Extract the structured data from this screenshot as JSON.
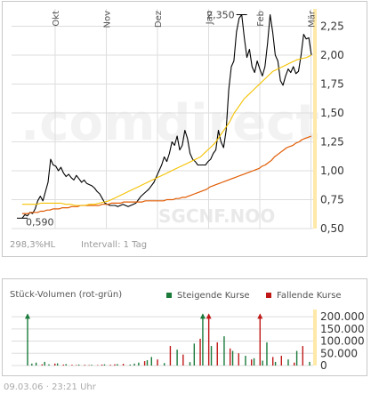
{
  "colors": {
    "price": "#000000",
    "ma_short": "#f5c200",
    "ma_long": "#e05a00",
    "grid": "#dddddd",
    "axis_band": "#ffe9a8",
    "rising": "#1a7a3a",
    "falling": "#c01818",
    "watermark": "#f0f0f0"
  },
  "watermark": {
    "brand": ".comdirect",
    "symbol": "SGCNF.NOO"
  },
  "info": {
    "change": "298,3%HL",
    "interval": "Intervall: 1 Tag"
  },
  "footer": {
    "timestamp": "09.03.06 · 23:21 Uhr"
  },
  "price_chart_data": {
    "type": "line",
    "x_labels": [
      "Okt",
      "Nov",
      "Dez",
      "Jan",
      "Feb",
      "Mär"
    ],
    "y_ticks": [
      "0,50",
      "0,75",
      "1,00",
      "1,25",
      "1,50",
      "1,75",
      "2,00",
      "2,25"
    ],
    "ylim": [
      0.5,
      2.4
    ],
    "annotations": {
      "high": "2,350",
      "low": "0,590"
    },
    "series": [
      {
        "values": [
          0.59,
          0.62,
          0.61,
          0.64,
          0.63,
          0.67,
          0.74,
          0.78,
          0.74,
          0.82,
          0.9,
          1.1,
          1.05,
          1.04,
          1.0,
          1.03,
          0.98,
          0.95,
          0.97,
          0.94,
          0.92,
          0.96,
          0.93,
          0.9,
          0.92,
          0.89,
          0.88,
          0.87,
          0.85,
          0.82,
          0.8,
          0.76,
          0.72,
          0.71,
          0.7,
          0.7,
          0.7,
          0.69,
          0.7,
          0.71,
          0.7,
          0.69,
          0.7,
          0.71,
          0.72,
          0.75,
          0.78,
          0.8,
          0.82,
          0.84,
          0.87,
          0.9,
          0.95,
          1.0,
          1.05,
          1.12,
          1.08,
          1.15,
          1.25,
          1.22,
          1.3,
          1.18,
          1.22,
          1.35,
          1.28,
          1.15,
          1.1,
          1.08,
          1.05,
          1.05,
          1.05,
          1.05,
          1.08,
          1.1,
          1.15,
          1.18,
          1.35,
          1.25,
          1.2,
          1.35,
          1.7,
          1.9,
          1.95,
          2.2,
          2.32,
          2.35,
          2.15,
          1.98,
          2.05,
          1.9,
          1.85,
          1.95,
          1.88,
          1.82,
          1.9,
          2.1,
          2.35,
          2.2,
          2.0,
          1.95,
          1.78,
          1.74,
          1.82,
          1.88,
          1.85,
          1.9,
          1.84,
          1.86,
          2.0,
          2.18,
          2.14,
          2.15,
          2.0
        ]
      },
      {
        "values": [
          0.63,
          0.63,
          0.63,
          0.64,
          0.64,
          0.64,
          0.65,
          0.65,
          0.66,
          0.66,
          0.67,
          0.67,
          0.67,
          0.68,
          0.68,
          0.68,
          0.69,
          0.69,
          0.69,
          0.7,
          0.7,
          0.7,
          0.7,
          0.7,
          0.7,
          0.7,
          0.71,
          0.71,
          0.71,
          0.72,
          0.72,
          0.72,
          0.72,
          0.73,
          0.73,
          0.73,
          0.73,
          0.73,
          0.73,
          0.73,
          0.74,
          0.74,
          0.74,
          0.74,
          0.74,
          0.74,
          0.74,
          0.75,
          0.75,
          0.75,
          0.76,
          0.76,
          0.77,
          0.77,
          0.78,
          0.79,
          0.8,
          0.81,
          0.82,
          0.83,
          0.84,
          0.86,
          0.87,
          0.88,
          0.89,
          0.9,
          0.91,
          0.92,
          0.93,
          0.94,
          0.95,
          0.96,
          0.97,
          0.98,
          0.99,
          1.0,
          1.01,
          1.02,
          1.04,
          1.05,
          1.07,
          1.09,
          1.12,
          1.14,
          1.16,
          1.18,
          1.2,
          1.21,
          1.22,
          1.24,
          1.25,
          1.27,
          1.28,
          1.29,
          1.3
        ]
      },
      {
        "values": [
          0.71,
          0.71,
          0.71,
          0.71,
          0.72,
          0.72,
          0.72,
          0.72,
          0.72,
          0.71,
          0.71,
          0.7,
          0.7,
          0.7,
          0.71,
          0.71,
          0.72,
          0.73,
          0.74,
          0.76,
          0.78,
          0.8,
          0.82,
          0.84,
          0.86,
          0.88,
          0.9,
          0.92,
          0.94,
          0.96,
          0.98,
          1.0,
          1.02,
          1.04,
          1.06,
          1.08,
          1.1,
          1.12,
          1.16,
          1.2,
          1.24,
          1.3,
          1.36,
          1.42,
          1.5,
          1.56,
          1.62,
          1.66,
          1.7,
          1.74,
          1.78,
          1.82,
          1.86,
          1.88,
          1.9,
          1.92,
          1.94,
          1.96,
          1.97,
          1.98,
          2.0
        ]
      }
    ]
  },
  "volume_chart_data": {
    "type": "bar",
    "title": "Stück-Volumen (rot-grün)",
    "legend": [
      "Steigende Kurse",
      "Fallende Kurse"
    ],
    "y_ticks": [
      "0",
      "50.000",
      "100.000",
      "150.000",
      "200.000"
    ],
    "ylim": [
      0,
      215000
    ],
    "rising": [
      210000,
      8000,
      12000,
      0,
      15000,
      5000,
      0,
      9000,
      0,
      6000,
      0,
      0,
      4000,
      0,
      0,
      3000,
      0,
      0,
      5000,
      0,
      0,
      6000,
      0,
      0,
      4000,
      8000,
      12000,
      0,
      22000,
      35000,
      0,
      0,
      10000,
      0,
      0,
      65000,
      0,
      0,
      14000,
      90000,
      0,
      210000,
      0,
      80000,
      0,
      0,
      120000,
      0,
      60000,
      0,
      0,
      40000,
      0,
      30000,
      0,
      20000,
      95000,
      0,
      15000,
      0,
      0,
      25000,
      0,
      60000,
      0,
      0,
      15000
    ],
    "falling": [
      0,
      0,
      0,
      5000,
      0,
      0,
      8000,
      0,
      4000,
      0,
      3000,
      2000,
      0,
      3000,
      2000,
      0,
      2000,
      4000,
      0,
      3000,
      5000,
      0,
      7000,
      0,
      0,
      0,
      0,
      18000,
      0,
      0,
      25000,
      0,
      0,
      80000,
      0,
      0,
      45000,
      0,
      0,
      0,
      110000,
      0,
      210000,
      0,
      95000,
      0,
      0,
      70000,
      0,
      50000,
      0,
      0,
      25000,
      0,
      210000,
      0,
      0,
      35000,
      0,
      40000,
      0,
      0,
      12000,
      0,
      80000,
      0,
      0
    ]
  }
}
